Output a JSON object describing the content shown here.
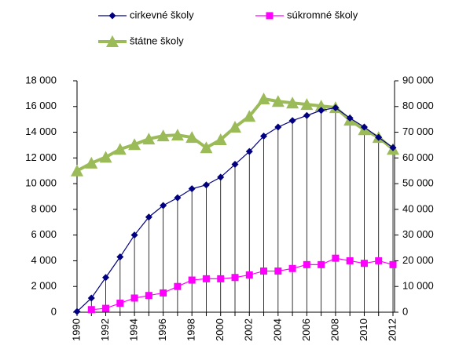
{
  "chart_data": {
    "type": "line",
    "categories": [
      "1990",
      null,
      "1992",
      null,
      "1994",
      null,
      "1996",
      null,
      "1998",
      null,
      "2000",
      null,
      "2002",
      null,
      "2004",
      null,
      "2006",
      null,
      "2008",
      null,
      "2010",
      null,
      "2012"
    ],
    "series": [
      {
        "name": "cirkevné školy",
        "color": "#000080",
        "marker": "diamond",
        "values": [
          50,
          1100,
          2700,
          4300,
          6000,
          7400,
          8300,
          8900,
          9600,
          9900,
          10500,
          11500,
          12500,
          13700,
          14400,
          14900,
          15300,
          15700,
          15900,
          15100,
          14400,
          13600,
          12800
        ]
      },
      {
        "name": "súkromné školy",
        "color": "#ff00ff",
        "marker": "square",
        "values": [
          null,
          200,
          300,
          700,
          1100,
          1300,
          1500,
          2000,
          2500,
          2600,
          2600,
          2700,
          2900,
          3200,
          3200,
          3400,
          3700,
          3700,
          4200,
          4000,
          3800,
          4000,
          3700
        ]
      },
      {
        "name": "štátne školy",
        "color": "#9bbb59",
        "marker": "triangle",
        "axis": "y2",
        "values": [
          55000,
          58000,
          60300,
          63400,
          65200,
          67400,
          68600,
          68900,
          68000,
          64000,
          67100,
          72000,
          76200,
          83000,
          82000,
          81400,
          80800,
          80200,
          79600,
          74700,
          71000,
          68000,
          63400
        ]
      }
    ],
    "ylim": [
      0,
      18000
    ],
    "yticks": [
      0,
      {
        "value": 2000,
        "label": "2 000"
      },
      {
        "value": 4000,
        "label": "4 000"
      },
      {
        "value": 6000,
        "label": "6 000"
      },
      {
        "value": 8000,
        "label": "8 000"
      },
      {
        "value": 10000,
        "label": "10 000"
      },
      {
        "value": 12000,
        "label": "12 000"
      },
      {
        "value": 14000,
        "label": "14 000"
      },
      {
        "value": 16000,
        "label": "16 000"
      },
      {
        "value": 18000,
        "label": "18 000"
      }
    ],
    "y2lim": [
      0,
      90000
    ],
    "y2ticks": [
      0,
      {
        "value": 10000,
        "label": "10 000"
      },
      {
        "value": 20000,
        "label": "20 000"
      },
      {
        "value": 30000,
        "label": "30 000"
      },
      {
        "value": 40000,
        "label": "40 000"
      },
      {
        "value": 50000,
        "label": "50 000"
      },
      {
        "value": 60000,
        "label": "60 000"
      },
      {
        "value": 70000,
        "label": "70 000"
      },
      {
        "value": 80000,
        "label": "80 000"
      },
      {
        "value": 90000,
        "label": "90 000"
      }
    ],
    "grid": false,
    "legend": "top",
    "drop_lines": true
  }
}
